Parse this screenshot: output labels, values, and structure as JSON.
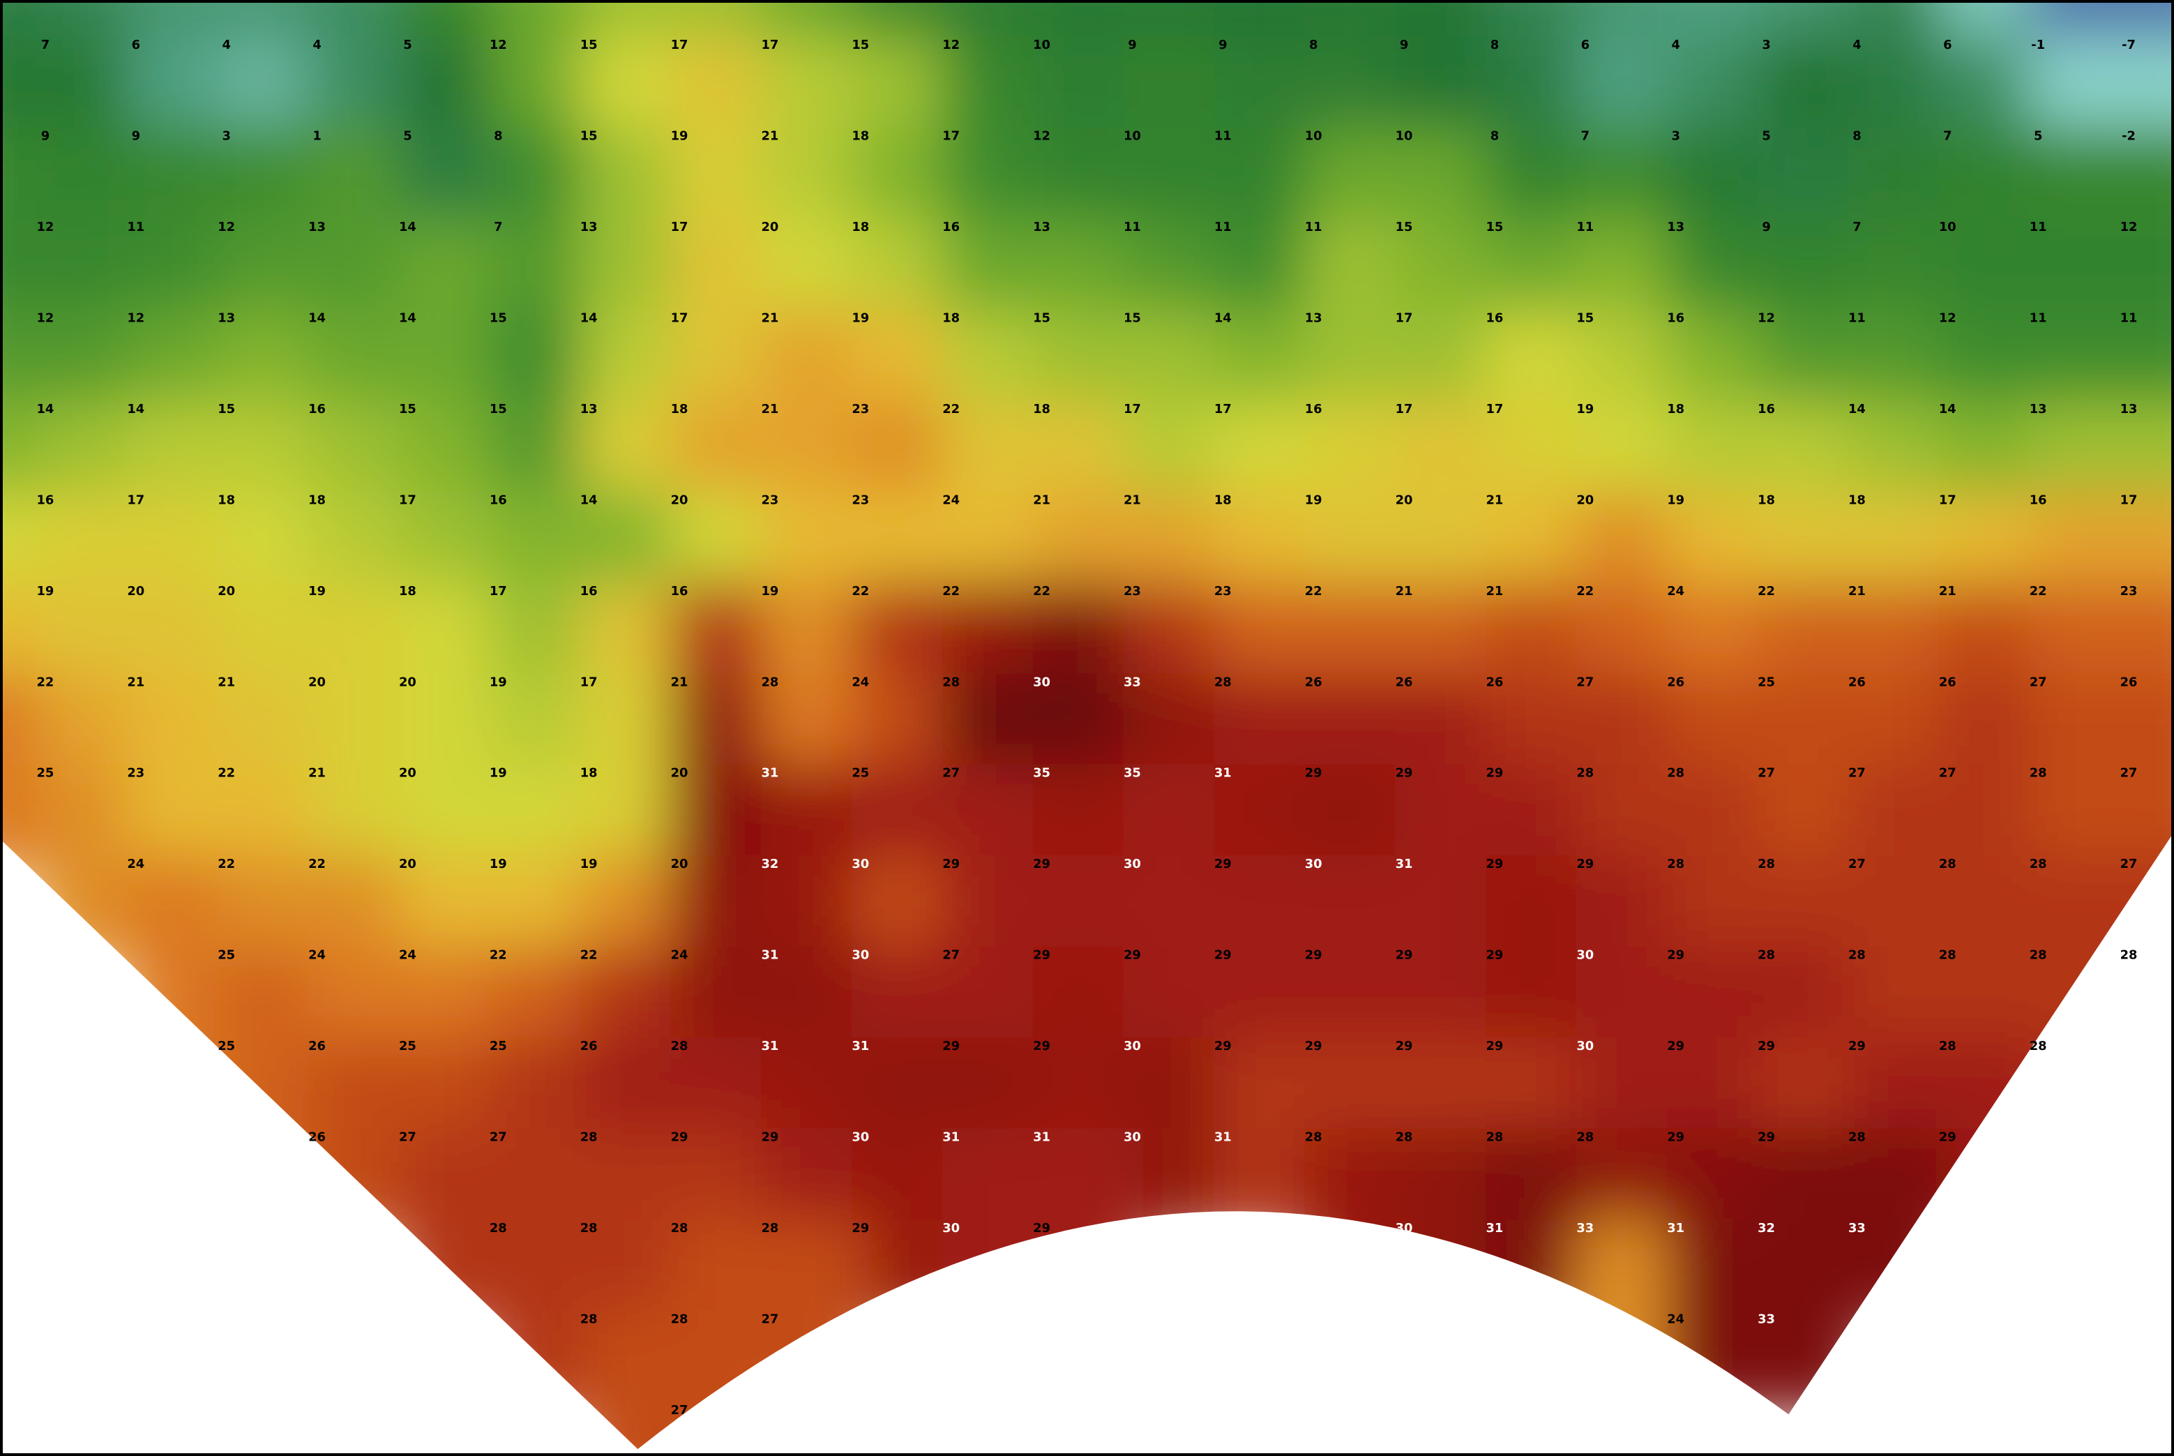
{
  "map": {
    "rows": [
      [
        7,
        6,
        4,
        4,
        5,
        12,
        15,
        17,
        17,
        15,
        12,
        10,
        9,
        9,
        8,
        9,
        8,
        6,
        4,
        3,
        4,
        6,
        -1,
        -7
      ],
      [
        9,
        9,
        3,
        1,
        5,
        8,
        15,
        19,
        21,
        18,
        17,
        12,
        10,
        11,
        10,
        10,
        8,
        7,
        3,
        5,
        8,
        7,
        5,
        -2
      ],
      [
        12,
        11,
        12,
        13,
        14,
        7,
        13,
        17,
        20,
        18,
        16,
        13,
        11,
        11,
        11,
        15,
        15,
        11,
        13,
        9,
        7,
        10,
        11,
        12
      ],
      [
        12,
        12,
        13,
        14,
        14,
        15,
        14,
        17,
        21,
        19,
        18,
        15,
        15,
        14,
        13,
        17,
        16,
        15,
        16,
        12,
        11,
        12,
        11,
        11
      ],
      [
        14,
        14,
        15,
        16,
        15,
        15,
        13,
        18,
        21,
        23,
        22,
        18,
        17,
        17,
        16,
        17,
        17,
        19,
        18,
        16,
        14,
        14,
        13,
        13
      ],
      [
        16,
        17,
        18,
        18,
        17,
        16,
        14,
        20,
        23,
        23,
        24,
        21,
        21,
        18,
        19,
        20,
        21,
        20,
        19,
        18,
        18,
        17,
        16,
        17
      ],
      [
        19,
        20,
        20,
        19,
        18,
        17,
        16,
        16,
        19,
        22,
        22,
        22,
        23,
        23,
        22,
        21,
        21,
        22,
        24,
        22,
        21,
        21,
        22,
        23
      ],
      [
        22,
        21,
        21,
        20,
        20,
        19,
        17,
        21,
        28,
        24,
        28,
        30,
        33,
        28,
        26,
        26,
        26,
        27,
        26,
        25,
        26,
        26,
        27,
        26
      ],
      [
        25,
        23,
        22,
        21,
        20,
        19,
        18,
        20,
        31,
        25,
        27,
        35,
        35,
        31,
        29,
        29,
        29,
        28,
        28,
        27,
        27,
        27,
        28,
        27
      ],
      [
        null,
        24,
        22,
        22,
        20,
        19,
        19,
        20,
        32,
        30,
        29,
        29,
        30,
        29,
        30,
        31,
        29,
        29,
        28,
        28,
        27,
        28,
        28,
        27
      ],
      [
        null,
        null,
        25,
        24,
        24,
        22,
        22,
        24,
        31,
        30,
        27,
        29,
        29,
        29,
        29,
        29,
        29,
        30,
        29,
        28,
        28,
        28,
        28,
        28
      ],
      [
        null,
        null,
        25,
        26,
        25,
        25,
        26,
        28,
        31,
        31,
        29,
        29,
        30,
        29,
        29,
        29,
        29,
        30,
        29,
        29,
        29,
        28,
        28,
        null
      ],
      [
        null,
        null,
        null,
        26,
        27,
        27,
        28,
        29,
        29,
        30,
        31,
        31,
        30,
        31,
        28,
        28,
        28,
        28,
        29,
        29,
        28,
        29,
        null,
        null
      ],
      [
        null,
        null,
        null,
        null,
        null,
        28,
        28,
        28,
        28,
        29,
        30,
        29,
        null,
        null,
        null,
        30,
        31,
        33,
        31,
        32,
        33,
        null,
        null,
        null
      ],
      [
        null,
        null,
        null,
        null,
        null,
        null,
        28,
        28,
        27,
        null,
        null,
        null,
        null,
        null,
        null,
        null,
        null,
        null,
        24,
        33,
        null,
        null,
        null,
        null
      ],
      [
        null,
        null,
        null,
        null,
        null,
        null,
        null,
        27,
        null,
        null,
        null,
        null,
        null,
        null,
        null,
        null,
        null,
        null,
        null,
        null,
        null,
        null,
        null,
        null
      ]
    ]
  }
}
